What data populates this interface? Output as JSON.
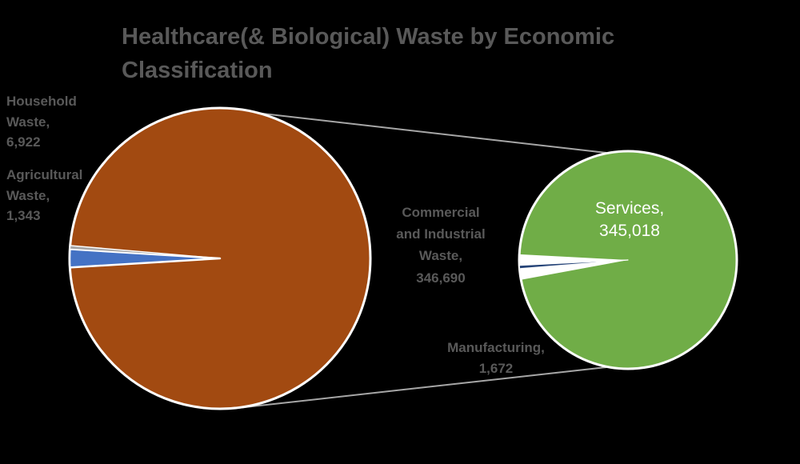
{
  "chart_data": {
    "type": "pie-of-pie",
    "title": "Healthcare(& Biological) Waste by Economic Classification",
    "legend": "none",
    "background": "#000000",
    "title_color": "#595959",
    "label_color": "#595959",
    "connector_color": "#A6A6A6",
    "border_color": "#FFFFFF",
    "primary_pie": {
      "slices": [
        {
          "label": "Household Waste",
          "value": 6922,
          "display": "Household Waste, 6,922",
          "color": "#4472C4"
        },
        {
          "label": "Agricultural Waste",
          "value": 1343,
          "display": "Agricultural Waste, 1,343",
          "color": "#A6A6A6"
        },
        {
          "label": "Commercial and Industrial Waste",
          "value": 346690,
          "display": "Commercial and Industrial Waste, 346,690",
          "color": "#A24A11",
          "grouped": true
        }
      ]
    },
    "secondary_pie": {
      "slices": [
        {
          "label": "Services",
          "value": 345018,
          "display": "Services, 345,018",
          "color": "#70AD47"
        },
        {
          "label": "Manufacturing",
          "value": 1672,
          "display": "Manufacturing, 1,672",
          "color": "#264478"
        }
      ]
    }
  }
}
